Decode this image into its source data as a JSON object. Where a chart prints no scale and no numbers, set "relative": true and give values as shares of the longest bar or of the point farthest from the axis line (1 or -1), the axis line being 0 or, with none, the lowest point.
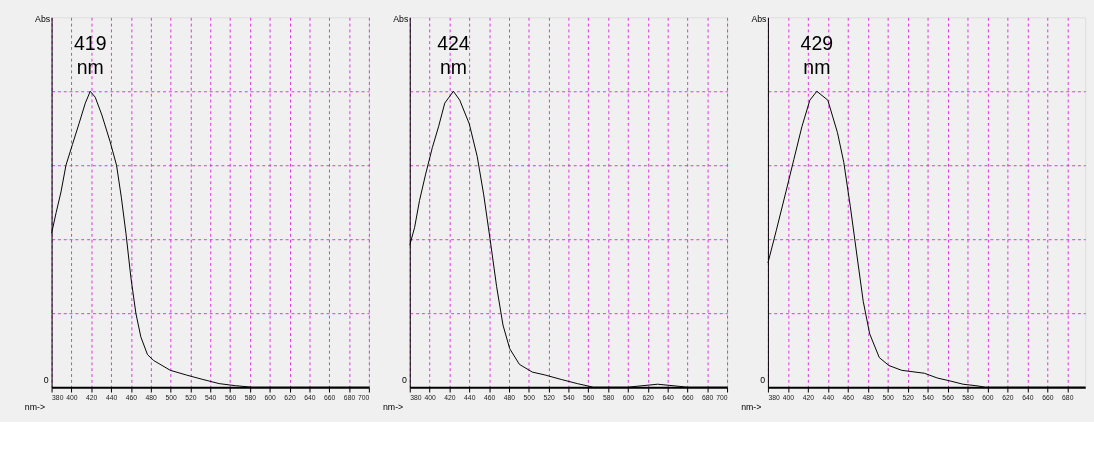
{
  "chart_data": [
    {
      "type": "line",
      "relative": true,
      "xlabel": "nm->",
      "ylabel": "Abs",
      "xlim": [
        380,
        700
      ],
      "xticks": [
        380,
        400,
        420,
        440,
        460,
        480,
        500,
        520,
        540,
        560,
        580,
        600,
        620,
        640,
        660,
        680,
        700
      ],
      "grid": true,
      "series": [
        {
          "color": "#000000",
          "x": [
            380,
            384.6,
            389.5,
            394.5,
            401,
            407.6,
            414,
            419,
            424,
            430.7,
            439,
            445.5,
            450.4,
            455,
            460,
            465,
            470,
            476.7,
            483,
            499.7,
            516,
            532.6,
            549,
            565.5,
            582,
            600,
            640,
            700
          ],
          "values": [
            0.52,
            0.59,
            0.66,
            0.75,
            0.82,
            0.89,
            0.96,
            1.0,
            0.98,
            0.92,
            0.83,
            0.75,
            0.64,
            0.52,
            0.37,
            0.25,
            0.17,
            0.11,
            0.09,
            0.057,
            0.041,
            0.026,
            0.012,
            0.005,
            0,
            0,
            0,
            0
          ]
        }
      ],
      "annotations": [
        {
          "text": "419\nnm",
          "x": 419,
          "y": 1
        },
        "0"
      ]
    },
    {
      "type": "line",
      "relative": true,
      "xlabel": "nm->",
      "ylabel": "Abs",
      "xlim": [
        380,
        700
      ],
      "xticks": [
        380,
        400,
        420,
        440,
        460,
        480,
        500,
        520,
        540,
        560,
        580,
        600,
        620,
        640,
        660,
        680,
        700
      ],
      "grid": true,
      "series": [
        {
          "color": "#000000",
          "x": [
            380,
            384.9,
            389.8,
            396,
            402.8,
            409,
            415.3,
            424,
            430.4,
            440,
            448,
            454.6,
            461,
            467.6,
            474,
            480.8,
            490.6,
            503.6,
            516.6,
            532.8,
            549,
            565,
            581,
            600,
            630,
            660,
            700
          ],
          "values": [
            0.48,
            0.54,
            0.63,
            0.72,
            0.81,
            0.88,
            0.96,
            1.0,
            0.97,
            0.89,
            0.78,
            0.65,
            0.5,
            0.34,
            0.21,
            0.13,
            0.077,
            0.051,
            0.041,
            0.026,
            0.012,
            0,
            0,
            0,
            0.01,
            0,
            0
          ]
        }
      ],
      "annotations": [
        {
          "text": "424\nnm",
          "x": 424,
          "y": 1
        },
        "0"
      ]
    },
    {
      "type": "line",
      "relative": true,
      "xlabel": "nm->",
      "ylabel": "Abs",
      "xlim": [
        380,
        698
      ],
      "xticks": [
        380,
        400,
        420,
        440,
        460,
        480,
        500,
        520,
        540,
        560,
        580,
        600,
        620,
        640,
        660,
        680
      ],
      "grid": true,
      "series": [
        {
          "color": "#000000",
          "x": [
            380,
            388.4,
            398,
            406,
            414,
            422,
            429,
            440,
            449.7,
            456,
            462.6,
            469,
            475.5,
            482,
            491.6,
            501.3,
            514,
            536.8,
            549.7,
            562.6,
            575.5,
            588.4,
            598,
            640,
            698
          ],
          "values": [
            0.42,
            0.53,
            0.66,
            0.77,
            0.88,
            0.97,
            1.0,
            0.97,
            0.86,
            0.76,
            0.61,
            0.45,
            0.29,
            0.18,
            0.1,
            0.073,
            0.057,
            0.047,
            0.031,
            0.021,
            0.01,
            0.005,
            0,
            0,
            0
          ]
        }
      ],
      "annotations": [
        {
          "text": "429\nnm",
          "x": 429,
          "y": 1
        },
        "0"
      ]
    }
  ]
}
